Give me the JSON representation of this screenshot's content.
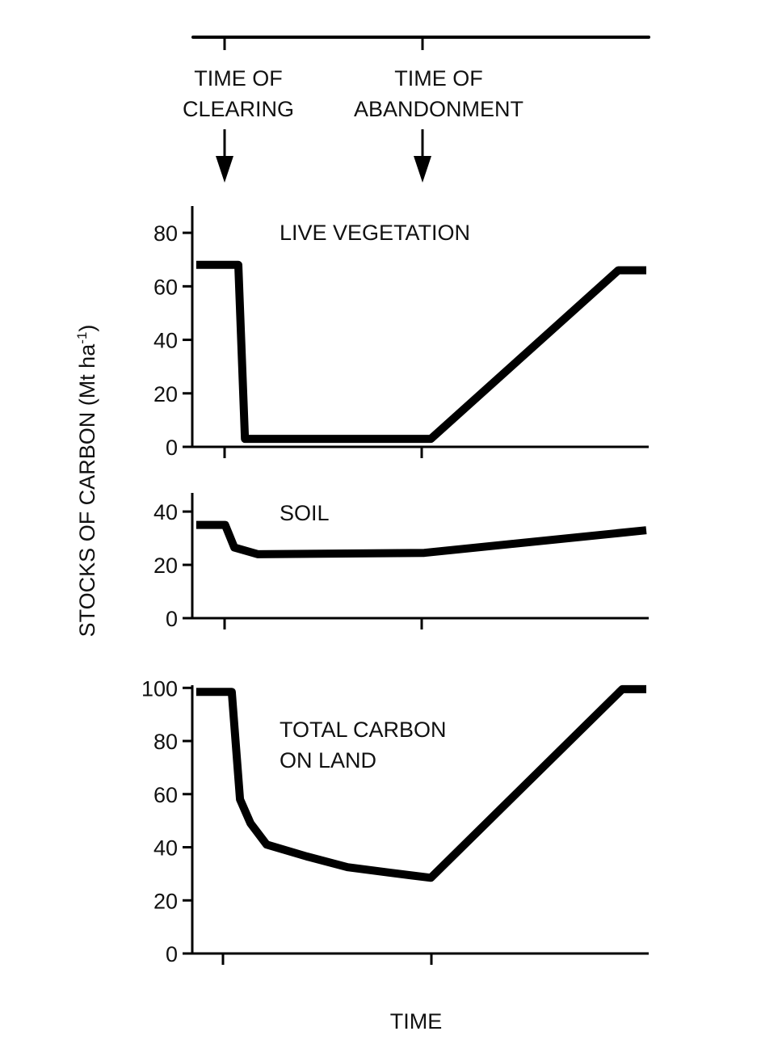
{
  "chart_data": {
    "type": "line",
    "ylabel": "STOCKS OF CARBON (Mt ha",
    "ylabel_superscript": "-1",
    "ylabel_suffix": ")",
    "xlabel": "TIME",
    "x_units": "arbitrary time units",
    "xlim": [
      0,
      13.8
    ],
    "events": [
      {
        "label_line1": "TIME OF",
        "label_line2": "CLEARING",
        "time": 1.0
      },
      {
        "label_line1": "TIME OF",
        "label_line2": "ABANDONMENT",
        "time": 7.0
      }
    ],
    "panels": [
      {
        "title": "LIVE VEGETATION",
        "ylim": [
          0,
          90
        ],
        "yticks": [
          0,
          20,
          40,
          60,
          80
        ],
        "series": {
          "name": "LIVE VEGETATION",
          "x": [
            0.12,
            1.4,
            1.6,
            7.25,
            12.95,
            13.8
          ],
          "y": [
            68,
            68,
            3,
            3,
            66,
            66
          ]
        }
      },
      {
        "title": "SOIL",
        "ylim": [
          0,
          47
        ],
        "yticks": [
          0,
          20,
          40
        ],
        "series": {
          "name": "SOIL",
          "x": [
            0.12,
            1.0,
            1.28,
            2.0,
            7.05,
            13.8
          ],
          "y": [
            35,
            35,
            26.5,
            24,
            24.5,
            33
          ]
        }
      },
      {
        "title_line1": "TOTAL CARBON",
        "title_line2": "ON LAND",
        "ylim": [
          0,
          101
        ],
        "yticks": [
          0,
          20,
          40,
          60,
          80,
          100
        ],
        "series": {
          "name": "TOTAL CARBON ON LAND",
          "x": [
            0.12,
            1.2,
            1.45,
            1.77,
            2.26,
            3.49,
            4.72,
            5.95,
            7.25,
            13.07,
            13.8
          ],
          "y": [
            98.5,
            98.5,
            58,
            49,
            41,
            36.5,
            32.5,
            30.5,
            28.5,
            99.5,
            99.5
          ]
        }
      }
    ]
  }
}
